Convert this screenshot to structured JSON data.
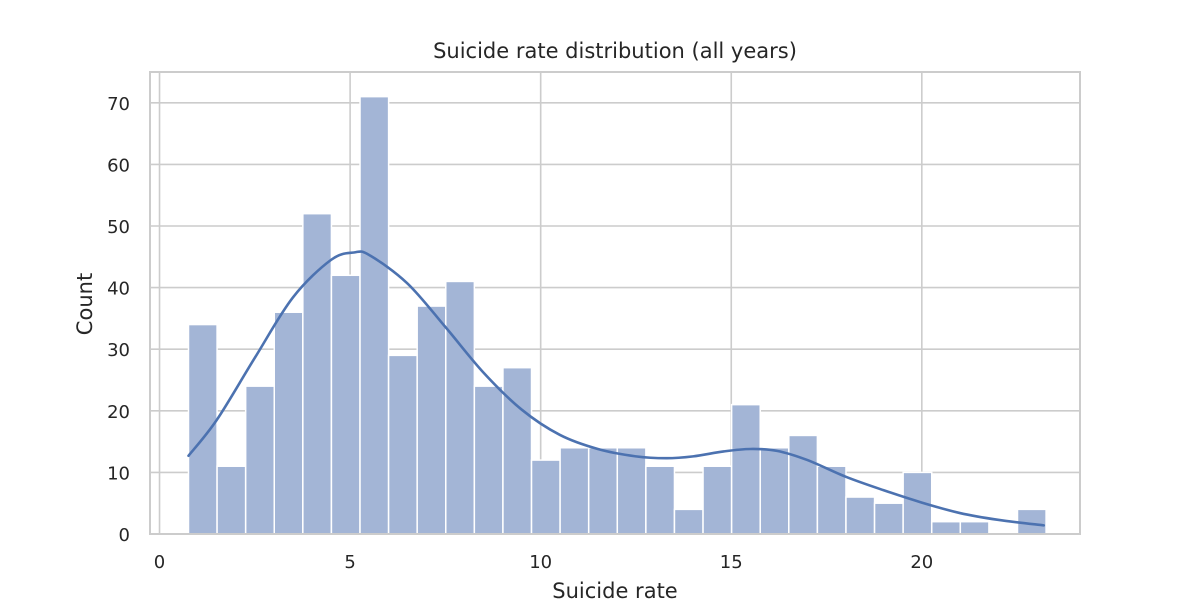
{
  "chart_data": {
    "type": "bar",
    "subtype": "histogram-with-kde",
    "title": "Suicide rate distribution (all years)",
    "xlabel": "Suicide  rate",
    "ylabel": "Count",
    "xlim": [
      -0.25,
      24.15
    ],
    "ylim": [
      0,
      75
    ],
    "xticks": [
      0,
      5,
      10,
      15,
      20
    ],
    "yticks": [
      0,
      10,
      20,
      30,
      40,
      50,
      60,
      70
    ],
    "grid": true,
    "bin_start": 0.76,
    "bin_width": 0.75,
    "bins": [
      {
        "x0": 0.76,
        "x1": 1.51,
        "count": 34
      },
      {
        "x0": 1.51,
        "x1": 2.26,
        "count": 11
      },
      {
        "x0": 2.26,
        "x1": 3.01,
        "count": 24
      },
      {
        "x0": 3.01,
        "x1": 3.76,
        "count": 36
      },
      {
        "x0": 3.76,
        "x1": 4.51,
        "count": 52
      },
      {
        "x0": 4.51,
        "x1": 5.26,
        "count": 42
      },
      {
        "x0": 5.26,
        "x1": 6.01,
        "count": 71
      },
      {
        "x0": 6.01,
        "x1": 6.76,
        "count": 29
      },
      {
        "x0": 6.76,
        "x1": 7.51,
        "count": 37
      },
      {
        "x0": 7.51,
        "x1": 8.26,
        "count": 41
      },
      {
        "x0": 8.26,
        "x1": 9.01,
        "count": 24
      },
      {
        "x0": 9.01,
        "x1": 9.76,
        "count": 27
      },
      {
        "x0": 9.76,
        "x1": 10.51,
        "count": 12
      },
      {
        "x0": 10.51,
        "x1": 11.26,
        "count": 14
      },
      {
        "x0": 11.26,
        "x1": 12.01,
        "count": 14
      },
      {
        "x0": 12.01,
        "x1": 12.76,
        "count": 14
      },
      {
        "x0": 12.76,
        "x1": 13.51,
        "count": 11
      },
      {
        "x0": 13.51,
        "x1": 14.26,
        "count": 4
      },
      {
        "x0": 14.26,
        "x1": 15.01,
        "count": 11
      },
      {
        "x0": 15.01,
        "x1": 15.76,
        "count": 21
      },
      {
        "x0": 15.76,
        "x1": 16.51,
        "count": 14
      },
      {
        "x0": 16.51,
        "x1": 17.26,
        "count": 16
      },
      {
        "x0": 17.26,
        "x1": 18.01,
        "count": 11
      },
      {
        "x0": 18.01,
        "x1": 18.76,
        "count": 6
      },
      {
        "x0": 18.76,
        "x1": 19.51,
        "count": 5
      },
      {
        "x0": 19.51,
        "x1": 20.26,
        "count": 10
      },
      {
        "x0": 20.26,
        "x1": 21.01,
        "count": 2
      },
      {
        "x0": 21.01,
        "x1": 21.76,
        "count": 2
      },
      {
        "x0": 21.76,
        "x1": 22.51,
        "count": 0
      },
      {
        "x0": 22.51,
        "x1": 23.26,
        "count": 4
      }
    ],
    "kde": {
      "x": [
        0.76,
        1.5,
        2.5,
        3.5,
        4.5,
        5.1,
        5.5,
        6.5,
        7.5,
        8.5,
        9.5,
        10.5,
        11.5,
        12.5,
        13.3,
        14,
        14.8,
        15.5,
        16.2,
        17,
        18,
        19,
        20,
        21,
        22,
        23.2
      ],
      "y": [
        12.7,
        18.5,
        28.6,
        38.4,
        44.5,
        45.7,
        45.3,
        40.7,
        33.6,
        26.2,
        20.2,
        16.1,
        13.8,
        12.6,
        12.3,
        12.6,
        13.4,
        13.8,
        13.5,
        12.0,
        9.3,
        7.1,
        5.1,
        3.4,
        2.3,
        1.4
      ]
    },
    "colors": {
      "bar_fill": "#a3b5d6",
      "bar_stroke": "#ffffff",
      "kde_line": "#4c72b0",
      "grid": "#cccccc",
      "spine": "#cccccc",
      "text": "#262626"
    }
  }
}
